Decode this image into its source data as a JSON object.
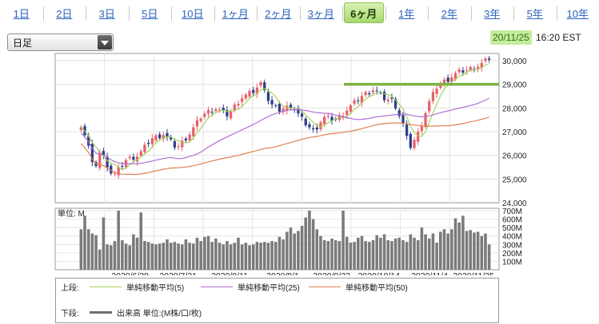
{
  "periods": [
    {
      "label": "1日",
      "active": false
    },
    {
      "label": "2日",
      "active": false
    },
    {
      "label": "3日",
      "active": false
    },
    {
      "label": "5日",
      "active": false
    },
    {
      "label": "10日",
      "active": false
    },
    {
      "label": "1ヶ月",
      "active": false
    },
    {
      "label": "2ヶ月",
      "active": false
    },
    {
      "label": "3ヶ月",
      "active": false
    },
    {
      "label": "6ヶ月",
      "active": true
    },
    {
      "label": "1年",
      "active": false
    },
    {
      "label": "2年",
      "active": false
    },
    {
      "label": "3年",
      "active": false
    },
    {
      "label": "5年",
      "active": false
    },
    {
      "label": "10年",
      "active": false
    }
  ],
  "interval_select": {
    "value": "日足"
  },
  "timestamp": {
    "date": "20/11/25",
    "time": "16:20 EST"
  },
  "chart_data": {
    "type": "candlestick",
    "y_ticks": [
      "30,000",
      "29,000",
      "28,000",
      "27,000",
      "26,000",
      "25,000",
      "24,000"
    ],
    "ylim": [
      24000,
      30300
    ],
    "x_ticks": [
      "2020/6/29",
      "2020/7/21",
      "2020/8/11",
      "2020/9/1",
      "2020/9/23",
      "2020/10/14",
      "2020/11/4",
      "2020/11/25"
    ],
    "reference_line": 29000,
    "volume": {
      "unit_label": "単位: M",
      "ticks": [
        "700M",
        "600M",
        "500M",
        "400M",
        "300M",
        "200M",
        "100M"
      ],
      "ylim": [
        0,
        700
      ],
      "values": [
        480,
        640,
        480,
        430,
        410,
        240,
        620,
        300,
        290,
        340,
        700,
        350,
        310,
        290,
        420,
        380,
        680,
        340,
        330,
        310,
        300,
        310,
        320,
        360,
        320,
        330,
        310,
        300,
        360,
        320,
        310,
        380,
        340,
        390,
        400,
        330,
        370,
        320,
        300,
        340,
        300,
        320,
        380,
        300,
        320,
        290,
        300,
        330,
        320,
        330,
        320,
        340,
        330,
        390,
        360,
        450,
        500,
        430,
        460,
        520,
        620,
        700,
        600,
        480,
        400,
        350,
        340,
        370,
        350,
        340,
        700,
        390,
        320,
        330,
        380,
        400,
        340,
        330,
        350,
        410,
        380,
        420,
        350,
        340,
        370,
        380,
        350,
        330,
        420,
        380,
        350,
        500,
        420,
        370,
        430,
        320,
        450,
        480,
        430,
        480,
        610,
        560,
        640,
        460,
        470,
        440,
        450,
        400,
        430,
        300
      ]
    },
    "legend": {
      "upper_label": "上段:",
      "lower_label": "下段:",
      "ma5": {
        "label": "単純移動平均(5)",
        "color": "#a6d35d"
      },
      "ma25": {
        "label": "単純移動平均(25)",
        "color": "#b06ed6"
      },
      "ma50": {
        "label": "単純移動平均(50)",
        "color": "#e08050"
      },
      "volume": {
        "label": "出来高 単位:(M株/口/枚)",
        "color": "#707070"
      }
    }
  }
}
